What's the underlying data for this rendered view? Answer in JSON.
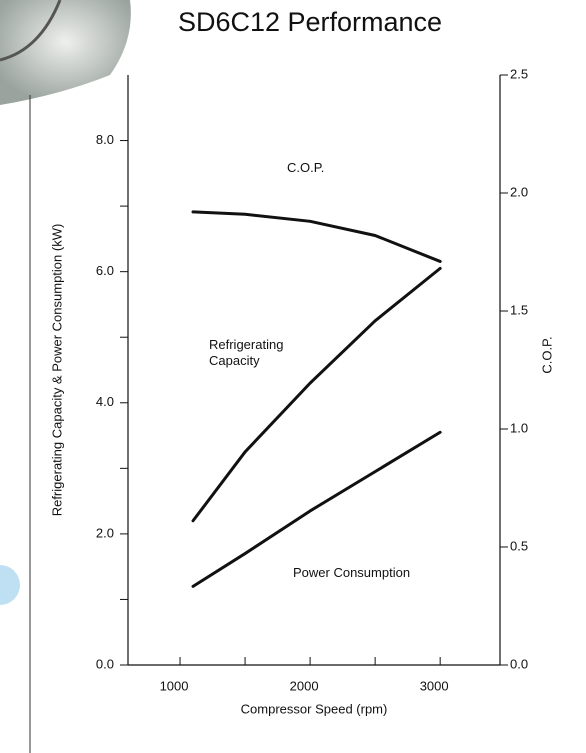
{
  "chart_data": {
    "type": "line",
    "title": "SD6C12 Performance",
    "x_label": "Compressor Speed (rpm)",
    "y_label": "Refrigerating Capacity & Power Consumption (kW)",
    "y2_label": "C.O.P.",
    "x": [
      1100,
      1500,
      2000,
      2500,
      3000
    ],
    "series": [
      {
        "name": "C.O.P.",
        "color": "#111111",
        "axis": "y2",
        "values": [
          1.92,
          1.91,
          1.88,
          1.82,
          1.71
        ]
      },
      {
        "name": "Refrigerating Capacity",
        "color": "#111111",
        "values": [
          2.2,
          3.25,
          4.3,
          5.25,
          6.05
        ]
      },
      {
        "name": "Power Consumption",
        "color": "#111111",
        "values": [
          1.2,
          1.7,
          2.35,
          2.95,
          3.55
        ]
      }
    ],
    "xlim": [
      600,
      3460
    ],
    "xticks": [
      1000,
      2000,
      3000
    ],
    "minor_xticks": [
      1500,
      2500
    ],
    "ylim": [
      0,
      9
    ],
    "yticks": [
      {
        "value": 0,
        "label": "0.0"
      },
      {
        "value": 2,
        "label": "2.0"
      },
      {
        "value": 4,
        "label": "4.0"
      },
      {
        "value": 6,
        "label": "6.0"
      },
      {
        "value": 8,
        "label": "8.0"
      }
    ],
    "minor_yticks": [
      1,
      3,
      5,
      7
    ],
    "y2lim": [
      0,
      2.5
    ],
    "y2ticks": [
      {
        "value": 0,
        "label": "0.0"
      },
      0.5,
      {
        "value": 1,
        "label": "1.0"
      },
      1.5,
      {
        "value": 2,
        "label": "2.0"
      },
      2.5
    ],
    "grid": false
  }
}
